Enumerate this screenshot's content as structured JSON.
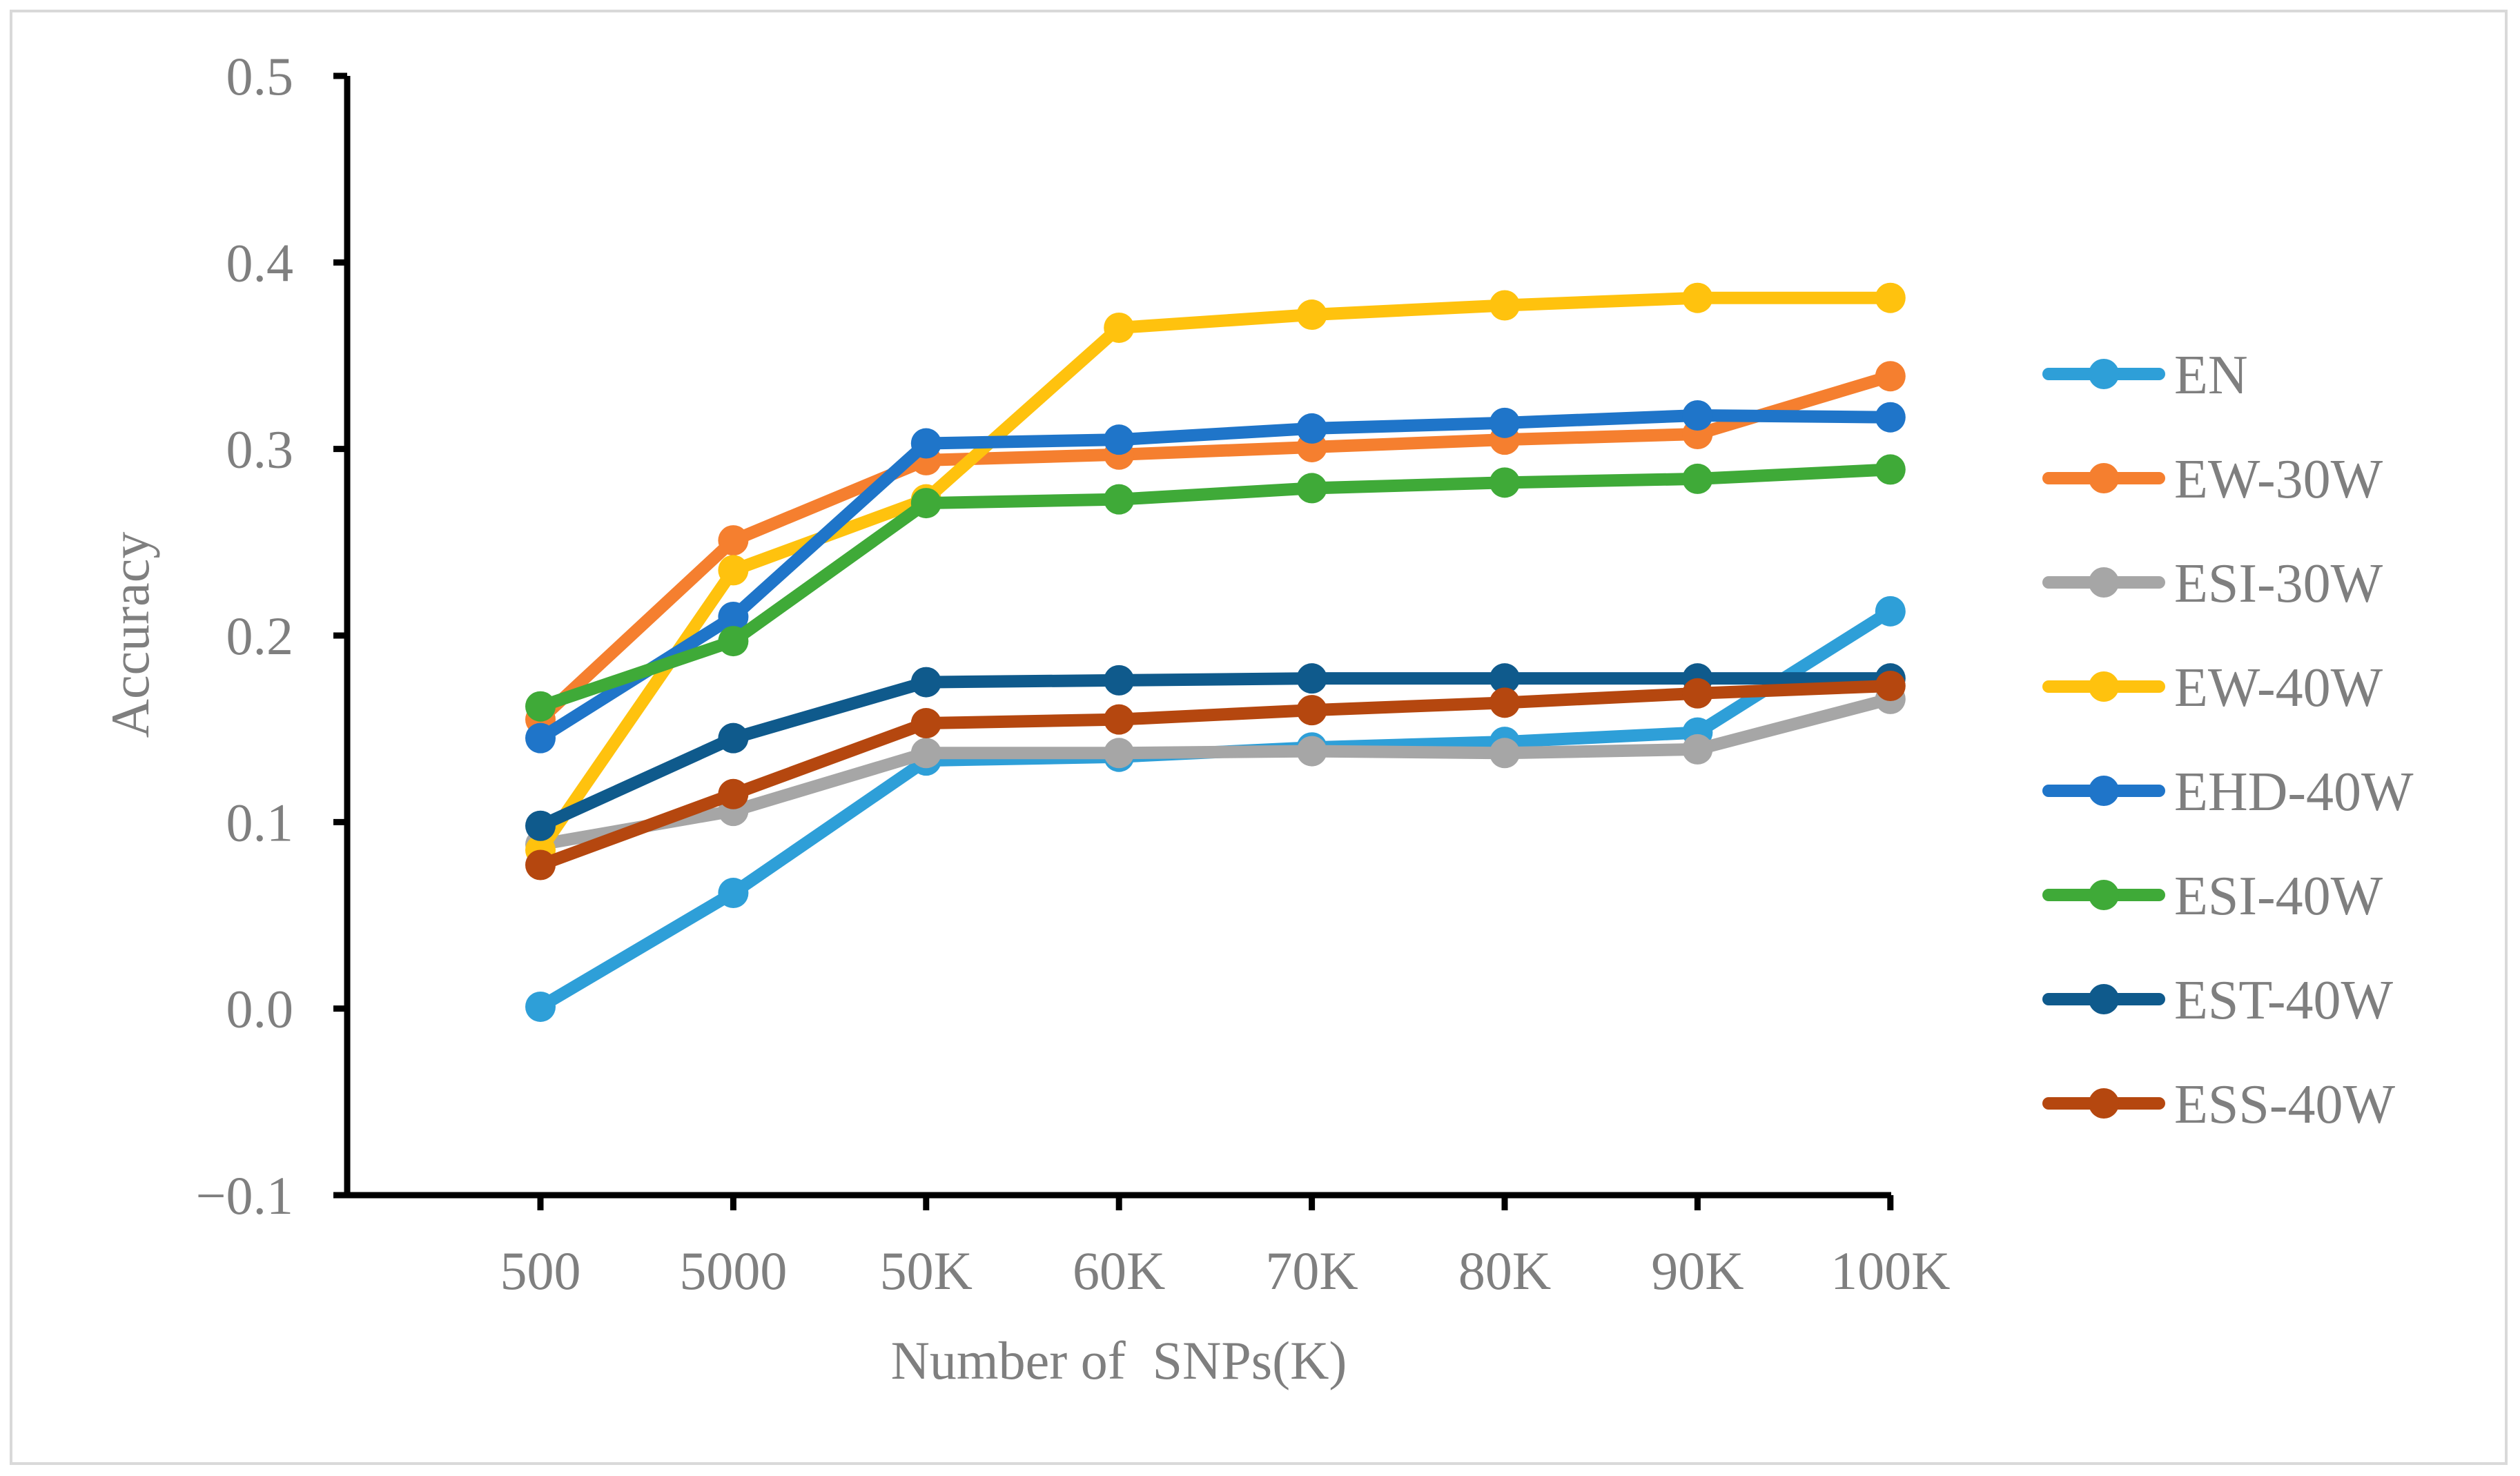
{
  "chart_data": {
    "type": "line",
    "title": "",
    "xlabel": "Number of  SNPs(K)",
    "ylabel": "Accuracy",
    "categories": [
      "500",
      "5000",
      "50K",
      "60K",
      "70K",
      "80K",
      "90K",
      "100K"
    ],
    "ylim": [
      -0.1,
      0.5
    ],
    "yticks": [
      -0.1,
      0.0,
      0.1,
      0.2,
      0.3,
      0.4,
      0.5
    ],
    "ytick_labels": [
      "−0.1",
      "0.0",
      "0.1",
      "0.2",
      "0.3",
      "0.4",
      "0.5"
    ],
    "grid": false,
    "legend_position": "right",
    "series": [
      {
        "name": "EN",
        "color": "#2e9fd8",
        "values": [
          0.001,
          0.062,
          0.133,
          0.135,
          0.14,
          0.143,
          0.148,
          0.213
        ]
      },
      {
        "name": "EW-30W",
        "color": "#f57f2f",
        "values": [
          0.155,
          0.251,
          0.294,
          0.297,
          0.301,
          0.305,
          0.308,
          0.339
        ]
      },
      {
        "name": "ESI-30W",
        "color": "#a6a6a6",
        "values": [
          0.088,
          0.106,
          0.137,
          0.137,
          0.138,
          0.137,
          0.139,
          0.166
        ]
      },
      {
        "name": "EW-40W",
        "color": "#ffc20e",
        "values": [
          0.085,
          0.235,
          0.273,
          0.365,
          0.372,
          0.377,
          0.381,
          0.381
        ]
      },
      {
        "name": "EHD-40W",
        "color": "#1f75c9",
        "values": [
          0.145,
          0.21,
          0.303,
          0.305,
          0.311,
          0.314,
          0.318,
          0.317
        ]
      },
      {
        "name": "ESI-40W",
        "color": "#3faa38",
        "values": [
          0.162,
          0.197,
          0.271,
          0.273,
          0.279,
          0.282,
          0.284,
          0.289
        ]
      },
      {
        "name": "EST-40W",
        "color": "#0f5a8c",
        "values": [
          0.098,
          0.145,
          0.175,
          0.176,
          0.177,
          0.177,
          0.177,
          0.177
        ]
      },
      {
        "name": "ESS-40W",
        "color": "#b5470f",
        "values": [
          0.077,
          0.115,
          0.153,
          0.155,
          0.16,
          0.164,
          0.169,
          0.173
        ]
      }
    ]
  }
}
